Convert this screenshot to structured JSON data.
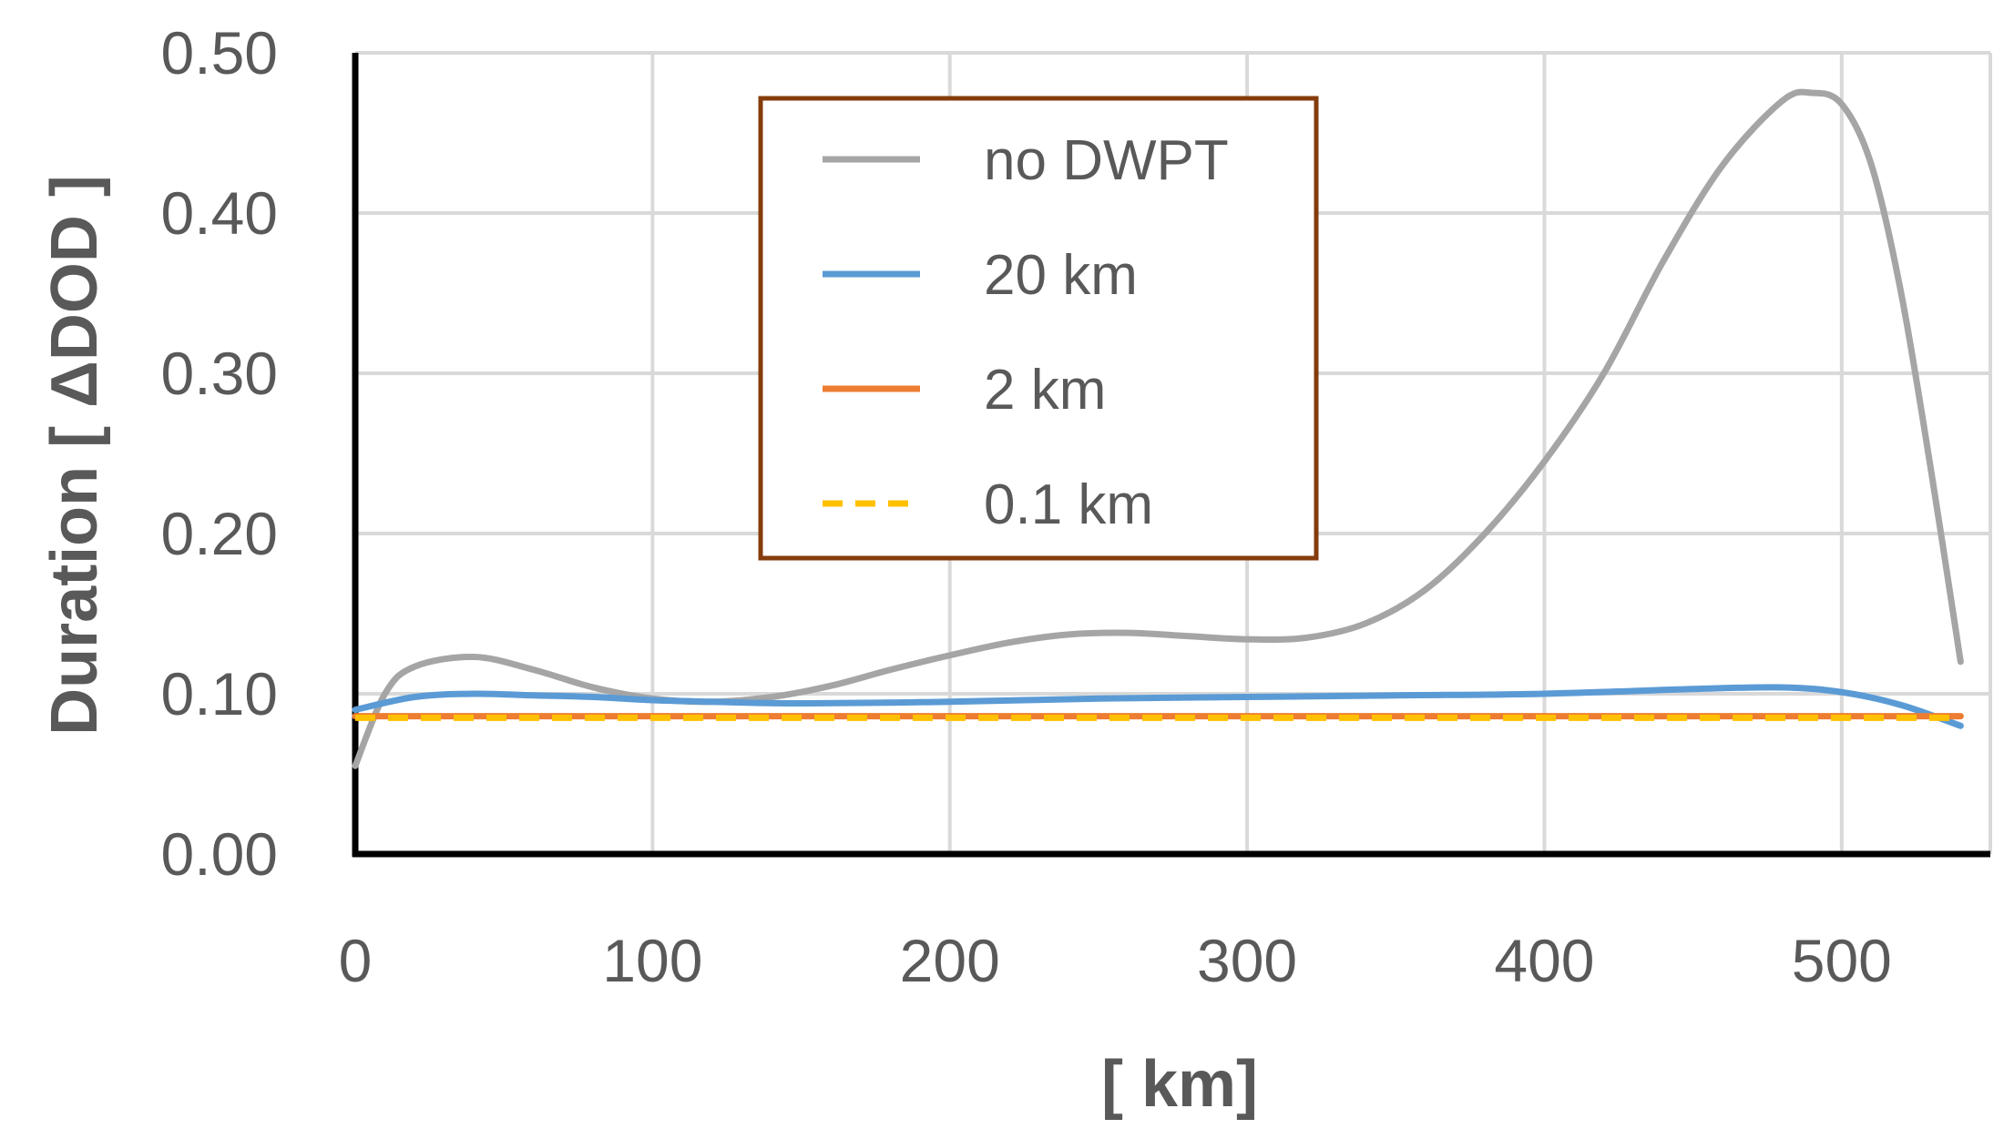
{
  "chart_data": {
    "type": "line",
    "title": "",
    "xlabel": "[ km]",
    "ylabel": "Duration [ ΔDOD ]",
    "xlim": [
      0,
      550
    ],
    "ylim": [
      0,
      0.5
    ],
    "x_ticks": [
      "0",
      "100",
      "200",
      "300",
      "400",
      "500"
    ],
    "y_ticks": [
      "0.00",
      "0.10",
      "0.20",
      "0.30",
      "0.40",
      "0.50"
    ],
    "x_tick_values": [
      0,
      100,
      200,
      300,
      400,
      500
    ],
    "y_tick_values": [
      0,
      0.1,
      0.2,
      0.3,
      0.4,
      0.5
    ],
    "grid": true,
    "legend_position": "top-center",
    "series": [
      {
        "name": "no DWPT",
        "color": "#A5A5A5",
        "style": "solid",
        "x": [
          0,
          10,
          20,
          40,
          60,
          80,
          100,
          120,
          140,
          160,
          180,
          200,
          220,
          240,
          260,
          280,
          300,
          320,
          340,
          360,
          380,
          400,
          420,
          440,
          460,
          480,
          490,
          500,
          510,
          520,
          530,
          540
        ],
        "y": [
          0.055,
          0.1,
          0.117,
          0.123,
          0.115,
          0.104,
          0.097,
          0.095,
          0.098,
          0.105,
          0.115,
          0.124,
          0.132,
          0.137,
          0.138,
          0.136,
          0.134,
          0.135,
          0.144,
          0.165,
          0.2,
          0.245,
          0.3,
          0.37,
          0.43,
          0.47,
          0.475,
          0.468,
          0.43,
          0.35,
          0.24,
          0.12
        ]
      },
      {
        "name": "20 km",
        "color": "#5B9BD5",
        "style": "solid",
        "x": [
          0,
          20,
          40,
          60,
          80,
          100,
          120,
          150,
          200,
          250,
          300,
          350,
          400,
          450,
          480,
          500,
          520,
          540
        ],
        "y": [
          0.09,
          0.098,
          0.1,
          0.099,
          0.098,
          0.096,
          0.095,
          0.094,
          0.095,
          0.097,
          0.098,
          0.099,
          0.1,
          0.103,
          0.104,
          0.101,
          0.093,
          0.08
        ]
      },
      {
        "name": "2 km",
        "color": "#ED7D31",
        "style": "solid",
        "x": [
          0,
          540
        ],
        "y": [
          0.086,
          0.086
        ]
      },
      {
        "name": "0.1 km",
        "color": "#FFC000",
        "style": "dashed",
        "x": [
          0,
          540
        ],
        "y": [
          0.085,
          0.085
        ]
      }
    ]
  }
}
